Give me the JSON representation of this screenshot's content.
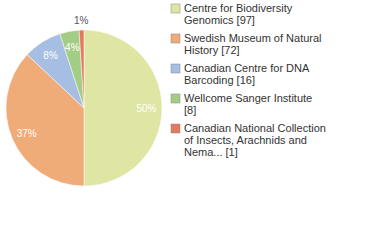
{
  "chart_data": {
    "type": "pie",
    "categories": [
      "Centre for Biodiversity Genomics [97]",
      "Swedish Museum of Natural History [72]",
      "Canadian Centre for DNA Barcoding [16]",
      "Wellcome Sanger Institute [8]",
      "Canadian National Collection of Insects, Arachnids and Nema... [1]"
    ],
    "values": [
      50,
      37,
      8,
      4,
      1
    ],
    "colors": [
      "#dfe5a3",
      "#efab78",
      "#a5bee2",
      "#a3cc84",
      "#e27b5e"
    ],
    "data_labels": true,
    "legend": "right"
  }
}
